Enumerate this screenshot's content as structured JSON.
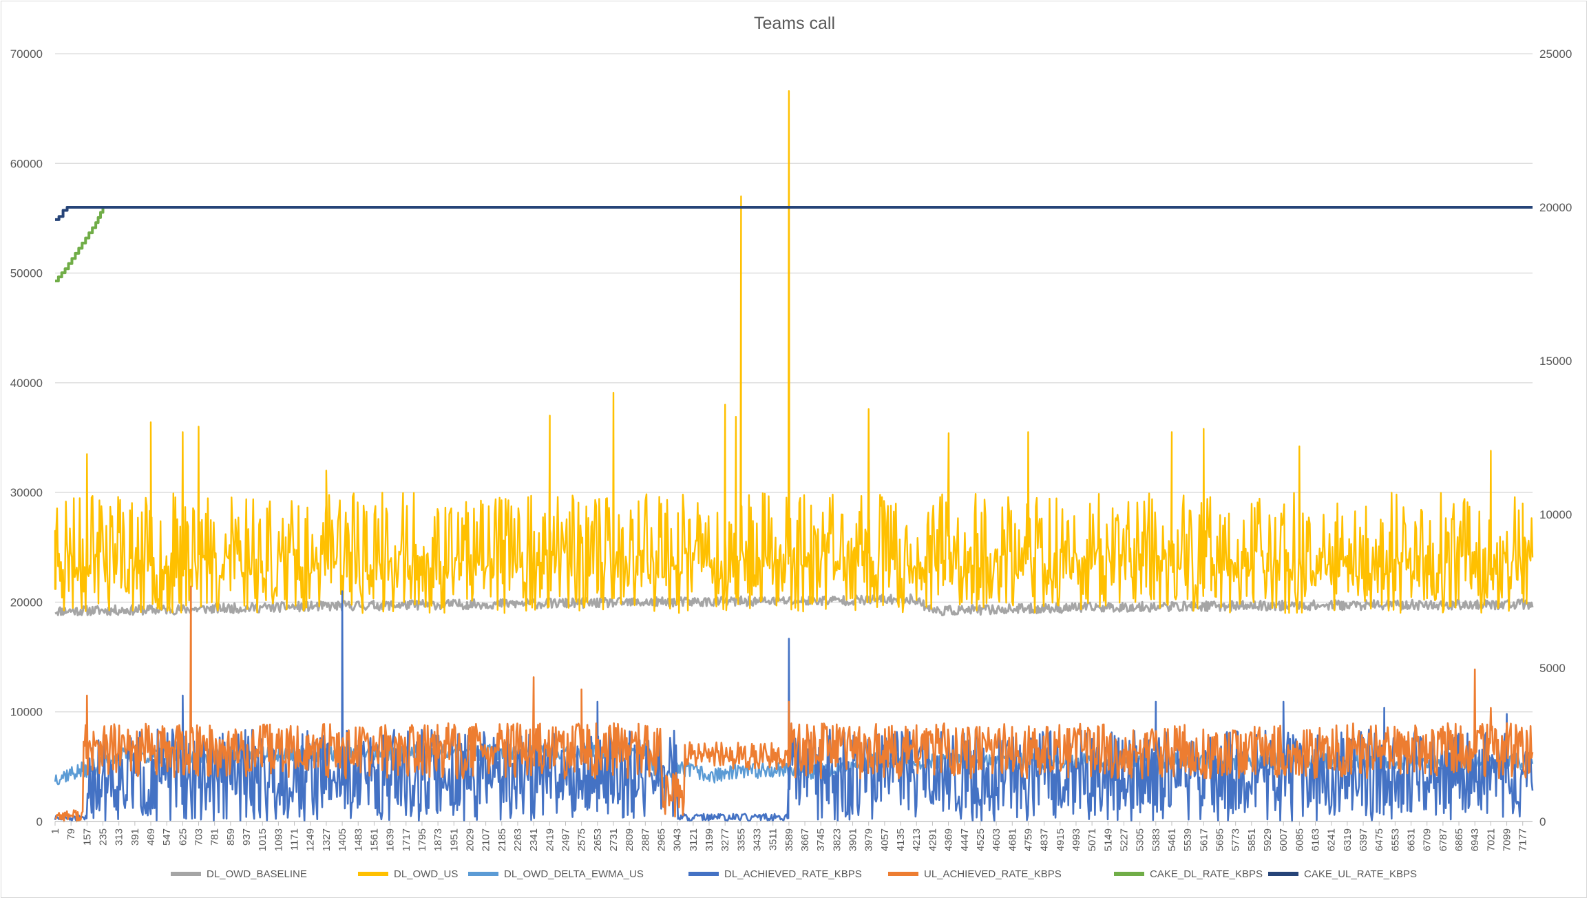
{
  "chart_data": {
    "type": "line",
    "title": "Teams call",
    "xlabel": "",
    "ylabel": "",
    "ylim_left": [
      0,
      70000
    ],
    "ylim_right": [
      0,
      25000
    ],
    "yticks_left": [
      0,
      10000,
      20000,
      30000,
      40000,
      50000,
      60000,
      70000
    ],
    "yticks_right": [
      0,
      5000,
      10000,
      15000,
      20000,
      25000
    ],
    "x_range": [
      1,
      7225
    ],
    "x_tick_step": 78,
    "grid": "horizontal",
    "legend_position": "bottom",
    "colors": {
      "DL_OWD_BASELINE": "#a5a5a5",
      "DL_OWD_US": "#ffc000",
      "DL_OWD_DELTA_EWMA_US": "#5b9bd5",
      "DL_ACHIEVED_RATE_KBPS": "#4472c4",
      "UL_ACHIEVED_RATE_KBPS": "#ed7d31",
      "CAKE_DL_RATE_KBPS": "#70ad47",
      "CAKE_UL_RATE_KBPS": "#264478"
    },
    "series": [
      {
        "name": "DL_OWD_BASELINE",
        "axis": "left",
        "points": [
          [
            1,
            19200
          ],
          [
            500,
            19300
          ],
          [
            1000,
            19500
          ],
          [
            1500,
            19700
          ],
          [
            2000,
            19800
          ],
          [
            2500,
            19900
          ],
          [
            3000,
            20000
          ],
          [
            3500,
            20100
          ],
          [
            4000,
            20200
          ],
          [
            4200,
            20300
          ],
          [
            4300,
            19200
          ],
          [
            5000,
            19500
          ],
          [
            6000,
            19700
          ],
          [
            7225,
            19800
          ]
        ]
      },
      {
        "name": "DL_OWD_US",
        "axis": "left",
        "typical_range": [
          19000,
          30000
        ],
        "spikes": [
          [
            1,
            26500
          ],
          [
            157,
            33500
          ],
          [
            469,
            36400
          ],
          [
            625,
            35500
          ],
          [
            703,
            36000
          ],
          [
            1327,
            32000
          ],
          [
            2420,
            37000
          ],
          [
            2731,
            39100
          ],
          [
            3277,
            38000
          ],
          [
            3330,
            36900
          ],
          [
            3355,
            57000
          ],
          [
            3589,
            66600
          ],
          [
            3979,
            37600
          ],
          [
            4370,
            35400
          ],
          [
            4759,
            35500
          ],
          [
            5461,
            35500
          ],
          [
            5617,
            35800
          ],
          [
            6085,
            34200
          ],
          [
            7021,
            33800
          ],
          [
            7177,
            29000
          ]
        ]
      },
      {
        "name": "DL_OWD_DELTA_EWMA_US",
        "axis": "left",
        "points": [
          [
            1,
            4000
          ],
          [
            100,
            4500
          ],
          [
            200,
            5000
          ],
          [
            300,
            6000
          ],
          [
            2900,
            6500
          ],
          [
            2965,
            3000
          ],
          [
            3043,
            5000
          ],
          [
            3200,
            4200
          ],
          [
            3500,
            4800
          ],
          [
            3800,
            4500
          ],
          [
            4000,
            5500
          ],
          [
            7225,
            5500
          ]
        ]
      },
      {
        "name": "DL_ACHIEVED_RATE_KBPS",
        "axis": "right",
        "typical_range": [
          0,
          3000
        ],
        "spikes": [
          [
            625,
            4100
          ],
          [
            1405,
            7500
          ],
          [
            2653,
            3900
          ],
          [
            3589,
            5950
          ],
          [
            5383,
            3900
          ],
          [
            6007,
            3900
          ],
          [
            6500,
            3700
          ],
          [
            7099,
            3500
          ]
        ],
        "low_segment": [
          [
            3043,
            100
          ],
          [
            3589,
            200
          ]
        ]
      },
      {
        "name": "UL_ACHIEVED_RATE_KBPS",
        "axis": "right",
        "typical_range": [
          1000,
          3200
        ],
        "spikes": [
          [
            157,
            4100
          ],
          [
            665,
            7650
          ],
          [
            2341,
            4700
          ],
          [
            2575,
            4300
          ],
          [
            3589,
            3900
          ],
          [
            6943,
            4950
          ],
          [
            7021,
            3700
          ]
        ],
        "low_segment": [
          [
            2965,
            200
          ],
          [
            3043,
            100
          ]
        ]
      },
      {
        "name": "CAKE_DL_RATE_KBPS",
        "axis": "right",
        "points": [
          [
            1,
            17600
          ],
          [
            50,
            18000
          ],
          [
            100,
            18500
          ],
          [
            150,
            19000
          ],
          [
            200,
            19500
          ],
          [
            235,
            20000
          ]
        ]
      },
      {
        "name": "CAKE_UL_RATE_KBPS",
        "axis": "right",
        "points": [
          [
            1,
            19600
          ],
          [
            20,
            19700
          ],
          [
            40,
            19900
          ],
          [
            60,
            20000
          ],
          [
            7225,
            20000
          ]
        ]
      }
    ]
  }
}
